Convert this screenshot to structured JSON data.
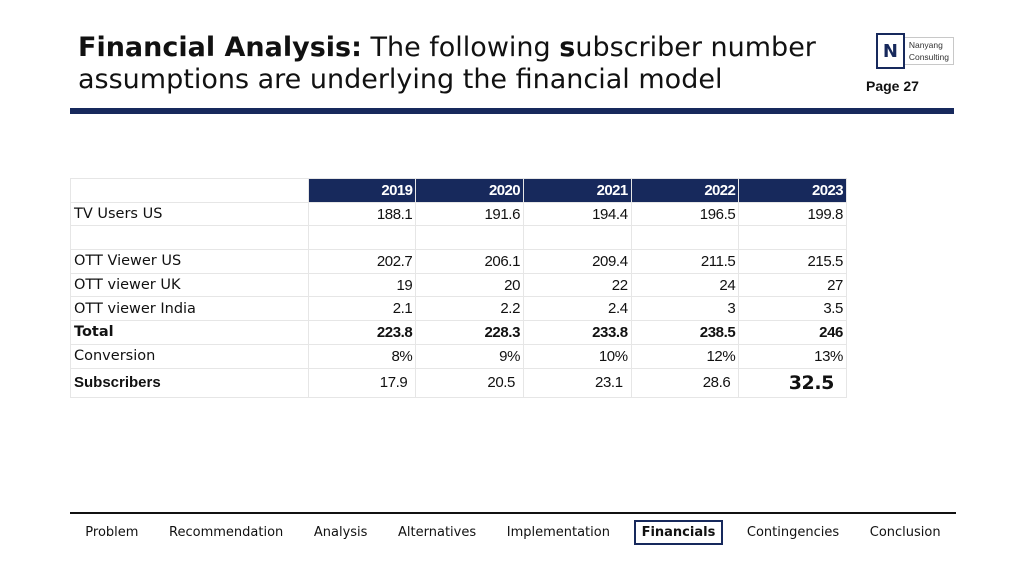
{
  "header": {
    "title_bold": "Financial Analysis:",
    "title_rest_1": " The following ",
    "title_bold_s": "s",
    "title_rest_2": "ubscriber number assumptions are underlying the financial model",
    "logo_letter": "N",
    "logo_line1": "Nanyang",
    "logo_line2": "Consulting",
    "page_label": "Page 27"
  },
  "table": {
    "years": [
      "2019",
      "2020",
      "2021",
      "2022",
      "2023"
    ],
    "rows": [
      {
        "label": "TV Users US",
        "values": [
          "188.1",
          "191.6",
          "194.4",
          "196.5",
          "199.8"
        ]
      },
      {
        "label": "",
        "values": [
          "",
          "",
          "",
          "",
          ""
        ]
      },
      {
        "label": "OTT Viewer US",
        "values": [
          "202.7",
          "206.1",
          "209.4",
          "211.5",
          "215.5"
        ]
      },
      {
        "label": "OTT viewer UK",
        "values": [
          "19",
          "20",
          "22",
          "24",
          "27"
        ]
      },
      {
        "label": "OTT viewer India",
        "values": [
          "2.1",
          "2.2",
          "2.4",
          "3",
          "3.5"
        ]
      },
      {
        "label": "Total",
        "values": [
          "223.8",
          "228.3",
          "233.8",
          "238.5",
          "246"
        ]
      },
      {
        "label": "Conversion",
        "values": [
          "8%",
          "9%",
          "10%",
          "12%",
          "13%"
        ]
      },
      {
        "label": "Subscribers",
        "values": [
          "17.9",
          "20.5",
          "23.1",
          "28.6",
          "32.5"
        ]
      }
    ]
  },
  "nav": {
    "items": [
      "Problem",
      "Recommendation",
      "Analysis",
      "Alternatives",
      "Implementation",
      "Financials",
      "Contingencies",
      "Conclusion"
    ],
    "active": "Financials"
  },
  "colors": {
    "brand_navy": "#17295c"
  }
}
